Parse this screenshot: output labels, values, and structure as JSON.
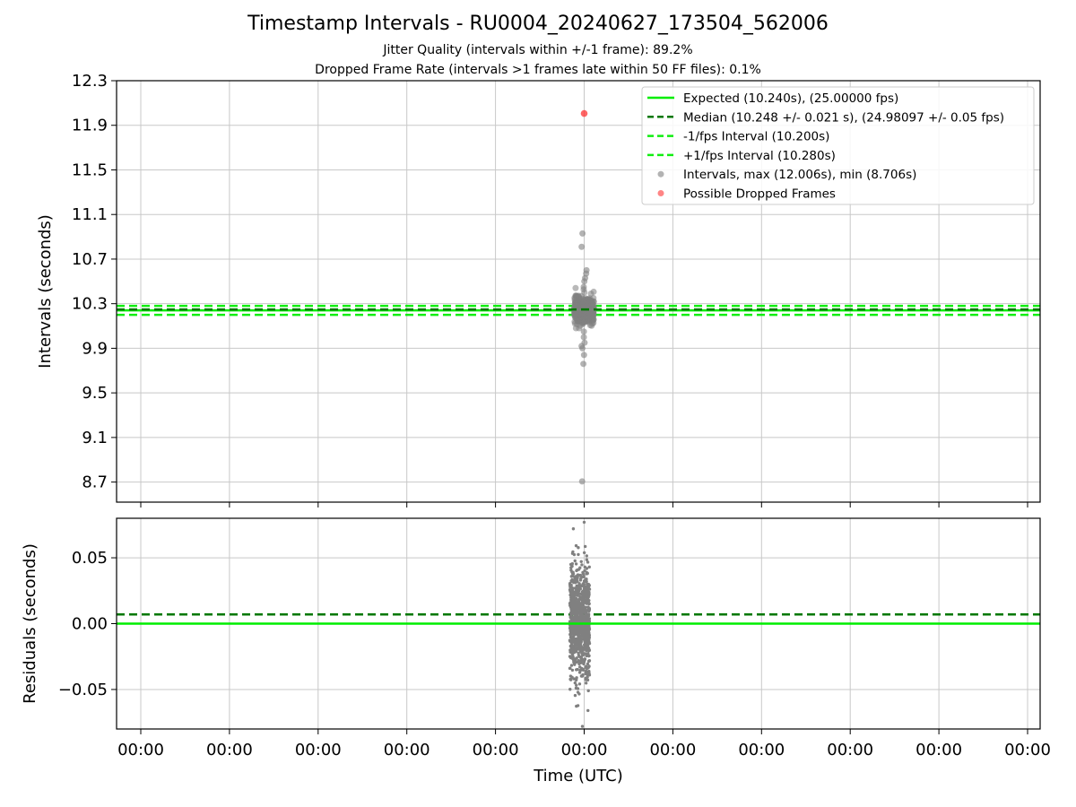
{
  "title": "Timestamp Intervals - RU0004_20240627_173504_562006",
  "subtitle_1": "Jitter Quality (intervals within +/-1 frame): 89.2%",
  "subtitle_2": "Dropped Frame Rate (intervals >1 frames late within 50 FF files): 0.1%",
  "colors": {
    "expected": "#00ee00",
    "median": "#007700",
    "interval_bounds": "#11ee11",
    "points": "#808080",
    "dropped": "#ff3333",
    "grid": "#c8c8c8"
  },
  "chart_data": [
    {
      "type": "scatter",
      "panel": "top",
      "ylabel": "Intervals (seconds)",
      "ylim": [
        8.52,
        12.3
      ],
      "yticks": [
        "8.7",
        "9.1",
        "9.5",
        "9.9",
        "10.3",
        "10.7",
        "11.1",
        "11.5",
        "11.9",
        "12.3"
      ],
      "ytick_values": [
        8.7,
        9.1,
        9.5,
        9.9,
        10.3,
        10.7,
        11.1,
        11.5,
        11.9,
        12.3
      ],
      "grid": true,
      "legend_position": "top-right",
      "legend": [
        "Expected (10.240s), (25.00000 fps)",
        "Median (10.248 +/- 0.021 s), (24.98097 +/- 0.05 fps)",
        "-1/fps Interval (10.200s)",
        "+1/fps Interval (10.280s)",
        "Intervals, max (12.006s), min (8.706s)",
        "Possible Dropped Frames"
      ],
      "lines": {
        "expected": 10.24,
        "median": 10.248,
        "minus_interval": 10.2,
        "plus_interval": 10.28
      },
      "intervals_summary": {
        "max": 12.006,
        "min": 8.706,
        "median": 10.248,
        "spread": 0.021
      },
      "outliers": [
        10.93,
        10.81,
        10.6,
        10.57,
        10.53,
        10.5,
        10.45,
        10.05,
        10.0,
        9.95,
        9.92,
        9.9,
        9.84,
        9.76,
        8.706
      ],
      "dropped_frames": [
        12.006
      ]
    },
    {
      "type": "scatter",
      "panel": "bottom",
      "ylabel": "Residuals (seconds)",
      "xlabel": "Time (UTC)",
      "ylim": [
        -0.08,
        0.08
      ],
      "yticks": [
        "0.05",
        "0.00",
        "−0.05"
      ],
      "ytick_values": [
        0.05,
        0.0,
        -0.05
      ],
      "xticks": [
        "00:00",
        "00:00",
        "00:00",
        "00:00",
        "00:00",
        "00:00",
        "00:00",
        "00:00",
        "00:00",
        "00:00",
        "00:00"
      ],
      "grid": true,
      "lines": {
        "expected": 0.0,
        "median": 0.007
      },
      "residuals_summary": {
        "max": 0.077,
        "min": -0.078
      }
    }
  ]
}
